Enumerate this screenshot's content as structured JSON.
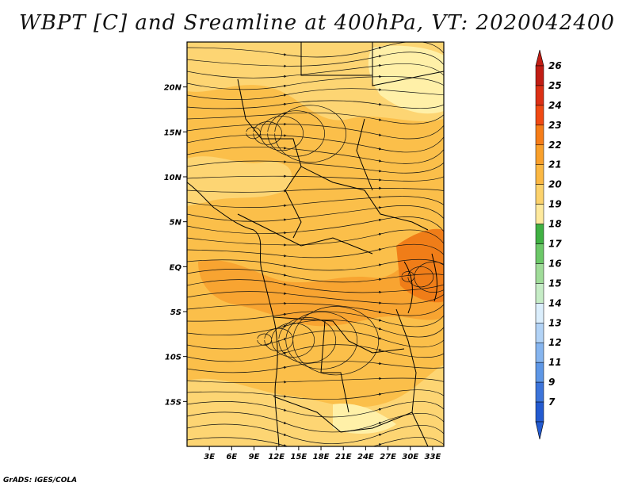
{
  "title": "WBPT [C] and Sreamline at 400hPa, VT: 2020042400",
  "credit": "GrADS: IGES/COLA",
  "map": {
    "lon_range": [
      0,
      34.5
    ],
    "lat_range": [
      -20,
      25
    ],
    "x_ticks": [
      {
        "label": "3E",
        "value": 3
      },
      {
        "label": "6E",
        "value": 6
      },
      {
        "label": "9E",
        "value": 9
      },
      {
        "label": "12E",
        "value": 12
      },
      {
        "label": "15E",
        "value": 15
      },
      {
        "label": "18E",
        "value": 18
      },
      {
        "label": "21E",
        "value": 21
      },
      {
        "label": "24E",
        "value": 24
      },
      {
        "label": "27E",
        "value": 27
      },
      {
        "label": "30E",
        "value": 30
      },
      {
        "label": "33E",
        "value": 33
      }
    ],
    "y_ticks": [
      {
        "label": "20N",
        "value": 20
      },
      {
        "label": "15N",
        "value": 15
      },
      {
        "label": "10N",
        "value": 10
      },
      {
        "label": "5N",
        "value": 5
      },
      {
        "label": "EQ",
        "value": 0
      },
      {
        "label": "5S",
        "value": -5
      },
      {
        "label": "10S",
        "value": -10
      },
      {
        "label": "15S",
        "value": -15
      }
    ],
    "colors": {
      "background": "#fbbf4a",
      "warm_light": "#fdd573",
      "warm_mid": "#f8a431",
      "warm_hot": "#f07d18",
      "cool_pale": "#fff0a8",
      "streamline": "#111111",
      "border": "#000000"
    }
  },
  "colorbar": {
    "levels": [
      "26",
      "25",
      "24",
      "23",
      "22",
      "21",
      "20",
      "19",
      "18",
      "17",
      "16",
      "15",
      "14",
      "13",
      "12",
      "11",
      "9",
      "7"
    ],
    "colors": [
      "#c11d14",
      "#dc3015",
      "#f04a13",
      "#f67d18",
      "#f9a02b",
      "#fbb843",
      "#fcd26c",
      "#fee99d",
      "#40b143",
      "#6cc868",
      "#a0dc99",
      "#c6ecc6",
      "#dbeefc",
      "#b2d3f6",
      "#86b5ef",
      "#5e97e6",
      "#3c74da",
      "#235ad0"
    ]
  }
}
